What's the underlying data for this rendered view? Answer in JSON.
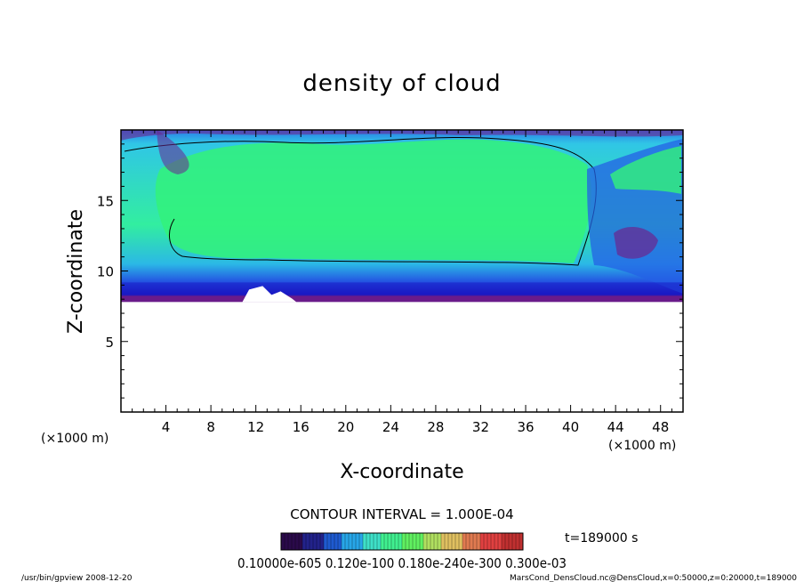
{
  "chart_data": {
    "type": "heatmap",
    "title": "density of cloud",
    "xlabel": "X-coordinate",
    "ylabel": "Z-coordinate",
    "x_unit": "(×1000 m)",
    "y_unit": "(×1000 m)",
    "xlim": [
      0,
      50
    ],
    "ylim": [
      0,
      20
    ],
    "x_ticks": [
      4,
      8,
      12,
      16,
      20,
      24,
      28,
      32,
      36,
      40,
      44,
      48
    ],
    "y_ticks": [
      5,
      10,
      15
    ],
    "cloud_base_z": 7.8,
    "contour_note": "CONTOUR INTERVAL = 1.000E-04",
    "time_label": "t=189000 s",
    "colorbar_labels": "0.10000e-605 0.120e-100 0.180e-240e-300 0.300e-03",
    "colorbar_colors": [
      "#2a0a4a",
      "#22228a",
      "#1e5ad0",
      "#27a6e8",
      "#3ee0c8",
      "#40f090",
      "#60f060",
      "#b0e060",
      "#e0c060",
      "#e07a50",
      "#e04040",
      "#c03030"
    ],
    "colors": {
      "bottom_edge": "#6a1b8a",
      "dark_blue": "#1a1ac8",
      "mid_blue": "#2460e6",
      "cyan": "#28c8e0",
      "green": "#33f27a",
      "purple_top": "#6b2590"
    }
  },
  "footer": {
    "left": "/usr/bin/gpview  2008-12-20",
    "right": "MarsCond_DensCloud.nc@DensCloud,x=0:50000,z=0:20000,t=189000"
  }
}
